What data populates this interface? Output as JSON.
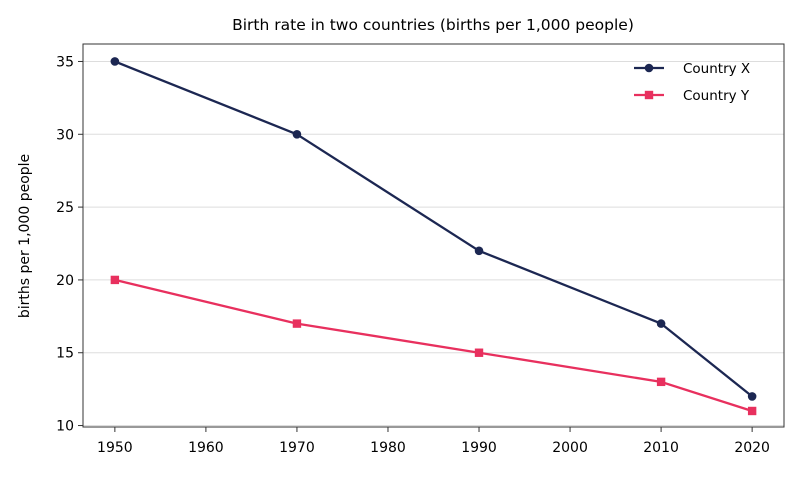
{
  "chart_data": {
    "type": "line",
    "title": "Birth rate in two countries (births per 1,000 people)",
    "xlabel": "",
    "ylabel": "births per 1,000 people",
    "x": [
      1950,
      1970,
      1990,
      2010,
      2020
    ],
    "xlim": [
      1946.5,
      2023.5
    ],
    "ylim": [
      9.9,
      36.2
    ],
    "xticks": [
      1950,
      1960,
      1970,
      1980,
      1990,
      2000,
      2010,
      2020
    ],
    "yticks": [
      10,
      15,
      20,
      25,
      30,
      35
    ],
    "grid": "horizontal",
    "legend": "top-right",
    "series": [
      {
        "name": "Country X",
        "color": "#1c2752",
        "marker": "circle",
        "values": [
          35,
          30,
          22,
          17,
          12
        ]
      },
      {
        "name": "Country Y",
        "color": "#e8305e",
        "marker": "square",
        "values": [
          20,
          17,
          15,
          13,
          11
        ]
      }
    ]
  }
}
